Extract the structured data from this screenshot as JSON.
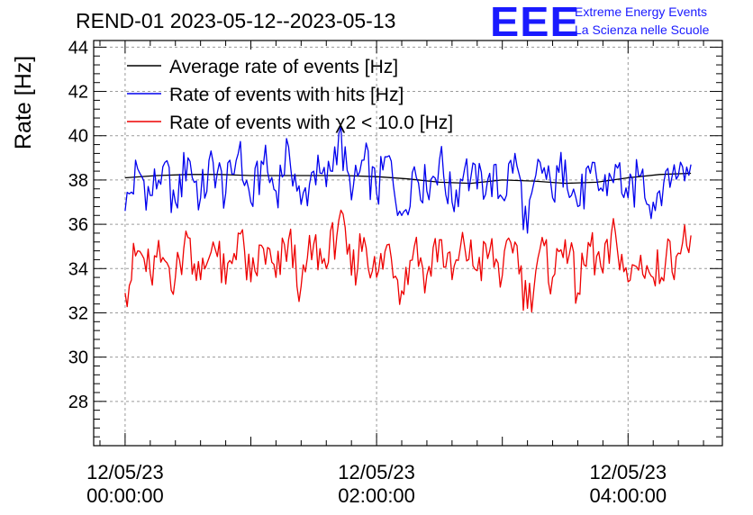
{
  "header": {
    "title": "REND-01 2023-05-12--2023-05-13",
    "logo_text": "EEE",
    "brand_line1": "Extreme Energy Events",
    "brand_line2": "La Scienza nelle Scuole"
  },
  "colors": {
    "average": "#000000",
    "hits": "#0000ee",
    "chi2": "#ee0000",
    "grid": "#9a9a9a",
    "logo": "#1a1aff"
  },
  "chart_data": {
    "type": "line",
    "title": "REND-01 2023-05-12--2023-05-13",
    "ylabel": "Rate [Hz]",
    "xlabel": "",
    "ylim": [
      26,
      44.3
    ],
    "xlim_hours": [
      -0.25,
      4.75
    ],
    "yticks": [
      28,
      30,
      32,
      34,
      36,
      38,
      40,
      42,
      44
    ],
    "xticks": [
      {
        "hour": 0,
        "date": "12/05/23",
        "time": "00:00:00"
      },
      {
        "hour": 2,
        "date": "12/05/23",
        "time": "02:00:00"
      },
      {
        "hour": 4,
        "date": "12/05/23",
        "time": "04:00:00"
      }
    ],
    "grid": true,
    "legend_position": "top-left",
    "series": [
      {
        "key": "average",
        "name": "Average rate of events [Hz]",
        "x_hours": [
          0.0,
          0.25,
          0.5,
          0.75,
          1.0,
          1.25,
          1.5,
          1.75,
          2.0,
          2.25,
          2.5,
          2.75,
          3.0,
          3.25,
          3.5,
          3.75,
          4.0,
          4.25,
          4.5
        ],
        "values": [
          38.1,
          38.2,
          38.25,
          38.25,
          38.2,
          38.2,
          38.2,
          38.2,
          38.15,
          38.05,
          37.9,
          37.85,
          38.0,
          37.95,
          37.85,
          37.9,
          38.1,
          38.25,
          38.3
        ]
      },
      {
        "key": "hits",
        "name": "Rate of events with hits [Hz]",
        "x_hours": [
          0.0,
          0.1,
          0.2,
          0.3,
          0.4,
          0.5,
          0.6,
          0.7,
          0.8,
          0.9,
          1.0,
          1.1,
          1.2,
          1.3,
          1.4,
          1.5,
          1.6,
          1.7,
          1.8,
          1.9,
          2.0,
          2.1,
          2.2,
          2.3,
          2.4,
          2.5,
          2.6,
          2.7,
          2.8,
          2.9,
          3.0,
          3.1,
          3.2,
          3.3,
          3.4,
          3.5,
          3.6,
          3.7,
          3.8,
          3.9,
          4.0,
          4.1,
          4.2,
          4.3,
          4.4,
          4.5
        ],
        "values": [
          36.6,
          38.5,
          37.3,
          38.6,
          37.0,
          39.0,
          37.2,
          38.8,
          37.4,
          39.2,
          37.0,
          38.7,
          37.5,
          39.5,
          36.9,
          38.4,
          37.7,
          40.1,
          37.1,
          38.9,
          37.4,
          39.1,
          36.4,
          38.6,
          37.5,
          38.9,
          37.0,
          38.5,
          37.6,
          38.3,
          37.2,
          39.2,
          35.6,
          38.8,
          37.2,
          38.9,
          36.8,
          38.3,
          37.5,
          38.7,
          37.2,
          38.2,
          37.0,
          38.4,
          38.2,
          38.7
        ]
      },
      {
        "key": "chi2",
        "name": "Rate of events with χ2 < 10.0 [Hz]",
        "x_hours": [
          0.0,
          0.1,
          0.2,
          0.3,
          0.4,
          0.5,
          0.6,
          0.7,
          0.8,
          0.9,
          1.0,
          1.1,
          1.2,
          1.3,
          1.4,
          1.5,
          1.6,
          1.7,
          1.8,
          1.9,
          2.0,
          2.1,
          2.2,
          2.3,
          2.4,
          2.5,
          2.6,
          2.7,
          2.8,
          2.9,
          3.0,
          3.1,
          3.2,
          3.3,
          3.4,
          3.5,
          3.6,
          3.7,
          3.8,
          3.9,
          4.0,
          4.1,
          4.2,
          4.3,
          4.4,
          4.5
        ],
        "values": [
          32.9,
          34.8,
          33.8,
          34.5,
          33.6,
          35.4,
          33.5,
          35.2,
          33.3,
          35.6,
          33.4,
          34.9,
          33.6,
          35.3,
          33.2,
          35.1,
          34.0,
          36.2,
          33.7,
          35.4,
          33.6,
          35.1,
          33.0,
          35.0,
          33.7,
          35.3,
          33.5,
          35.0,
          33.9,
          34.8,
          33.7,
          35.2,
          32.2,
          34.9,
          33.6,
          35.3,
          32.9,
          35.0,
          33.8,
          35.6,
          33.4,
          34.6,
          33.6,
          34.4,
          34.7,
          35.5
        ]
      }
    ]
  }
}
